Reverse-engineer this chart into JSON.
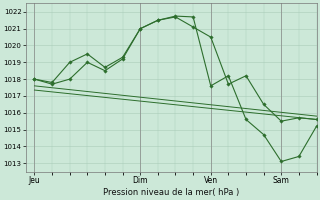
{
  "background_color": "#cce8d8",
  "grid_color": "#aaccb8",
  "line_color": "#2d6e2d",
  "marker_color": "#2d6e2d",
  "title": "Pression niveau de la mer( hPa )",
  "xlabel_ticks": [
    "Jeu",
    "Dim",
    "Ven",
    "Sam"
  ],
  "xlabel_tick_x": [
    0,
    36,
    60,
    84
  ],
  "xlim": [
    -3,
    96
  ],
  "ylim": [
    1012.5,
    1022.5
  ],
  "yticks": [
    1013,
    1014,
    1015,
    1016,
    1017,
    1018,
    1019,
    1020,
    1021,
    1022
  ],
  "vlines": [
    0,
    36,
    60,
    84
  ],
  "line1_x": [
    0,
    6,
    12,
    18,
    24,
    30,
    36,
    42,
    48,
    54,
    60,
    66,
    72,
    78,
    84,
    90,
    96
  ],
  "line1_y": [
    1018.0,
    1017.7,
    1018.0,
    1019.0,
    1018.5,
    1019.2,
    1021.0,
    1021.5,
    1021.7,
    1021.1,
    1020.5,
    1017.7,
    1018.2,
    1016.5,
    1015.5,
    1015.7,
    1015.6
  ],
  "line2_x": [
    0,
    6,
    12,
    18,
    24,
    30,
    36,
    42,
    48,
    54,
    60,
    66,
    72,
    78,
    84,
    90,
    96
  ],
  "line2_y": [
    1018.0,
    1017.8,
    1019.0,
    1019.5,
    1018.7,
    1019.3,
    1021.0,
    1021.5,
    1021.75,
    1021.7,
    1017.6,
    1018.2,
    1015.6,
    1014.7,
    1013.1,
    1013.4,
    1015.2
  ],
  "trend1_x": [
    0,
    96
  ],
  "trend1_y": [
    1017.6,
    1015.8
  ],
  "trend2_x": [
    0,
    96
  ],
  "trend2_y": [
    1017.35,
    1015.6
  ]
}
